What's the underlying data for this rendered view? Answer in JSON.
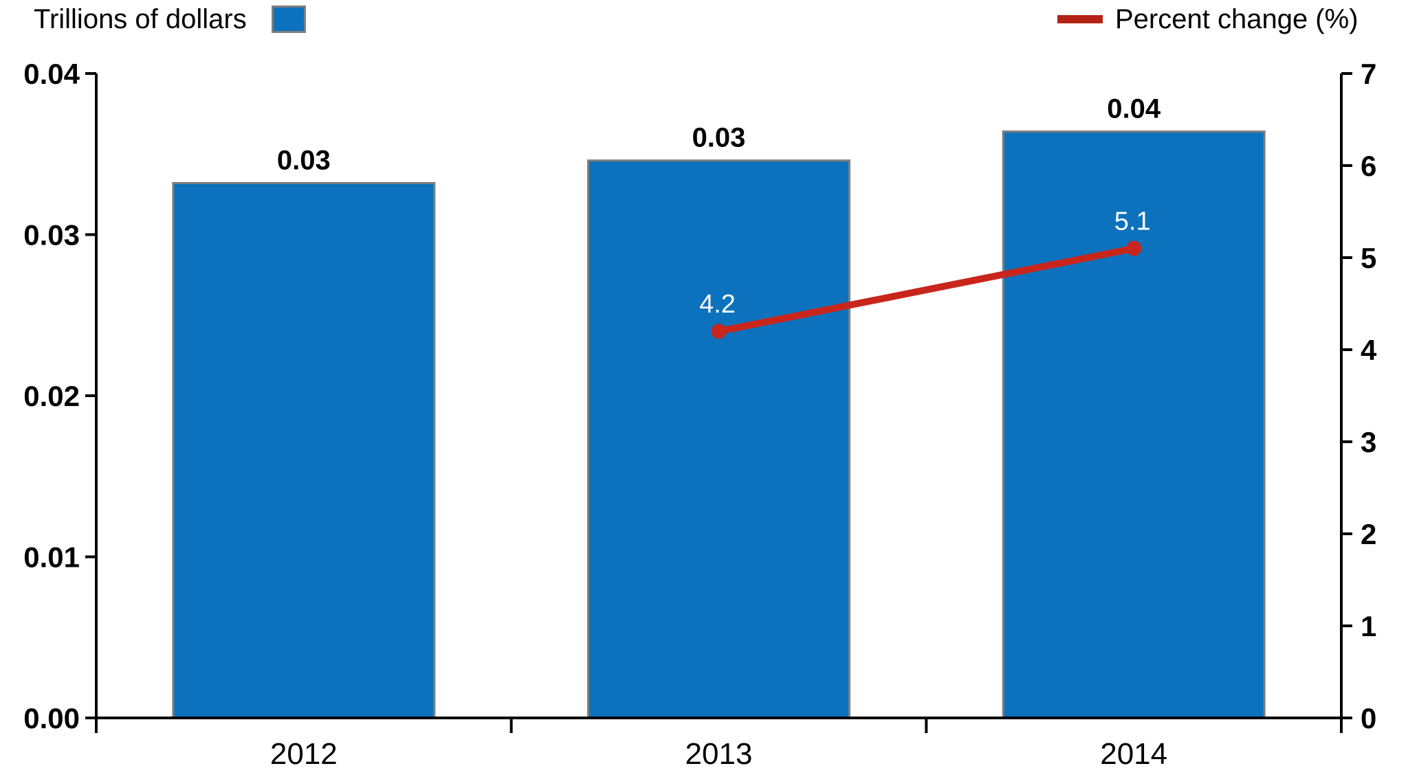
{
  "chart_data": {
    "type": "bar",
    "subtype": "combo-bar-line",
    "background": "#ffffff",
    "axis_color": "#000000",
    "grid": false,
    "categories": [
      "2012",
      "2013",
      "2014"
    ],
    "series": [
      {
        "name": "Trillions of dollars",
        "type": "bar",
        "axis": "left",
        "values": [
          0.0332,
          0.0346,
          0.0364
        ],
        "point_labels": [
          "0.03",
          "0.03",
          "0.04"
        ],
        "color": "#0d72bd",
        "border_color": "#7f7f7f",
        "label_color": "#000000"
      },
      {
        "name": "Percent change (%)",
        "type": "line",
        "axis": "right",
        "values": [
          null,
          4.2,
          5.1
        ],
        "point_labels": [
          null,
          "4.2",
          "5.1"
        ],
        "color": "#c8251c",
        "label_color": "#ffffff"
      }
    ],
    "left_axis": {
      "ticks": [
        "0.00",
        "0.01",
        "0.02",
        "0.03",
        "0.04"
      ],
      "range": [
        0,
        0.04
      ]
    },
    "right_axis": {
      "ticks": [
        "0",
        "1",
        "2",
        "3",
        "4",
        "5",
        "6",
        "7"
      ],
      "range": [
        0,
        7
      ]
    },
    "legend": [
      {
        "label": "Trillions of dollars",
        "swatch": "square",
        "color": "#0d72bd",
        "border_color": "#7f7f7f",
        "position": "top-left"
      },
      {
        "label": "Percent change (%)",
        "swatch": "line",
        "color": "#b52317",
        "position": "top-right"
      }
    ]
  }
}
